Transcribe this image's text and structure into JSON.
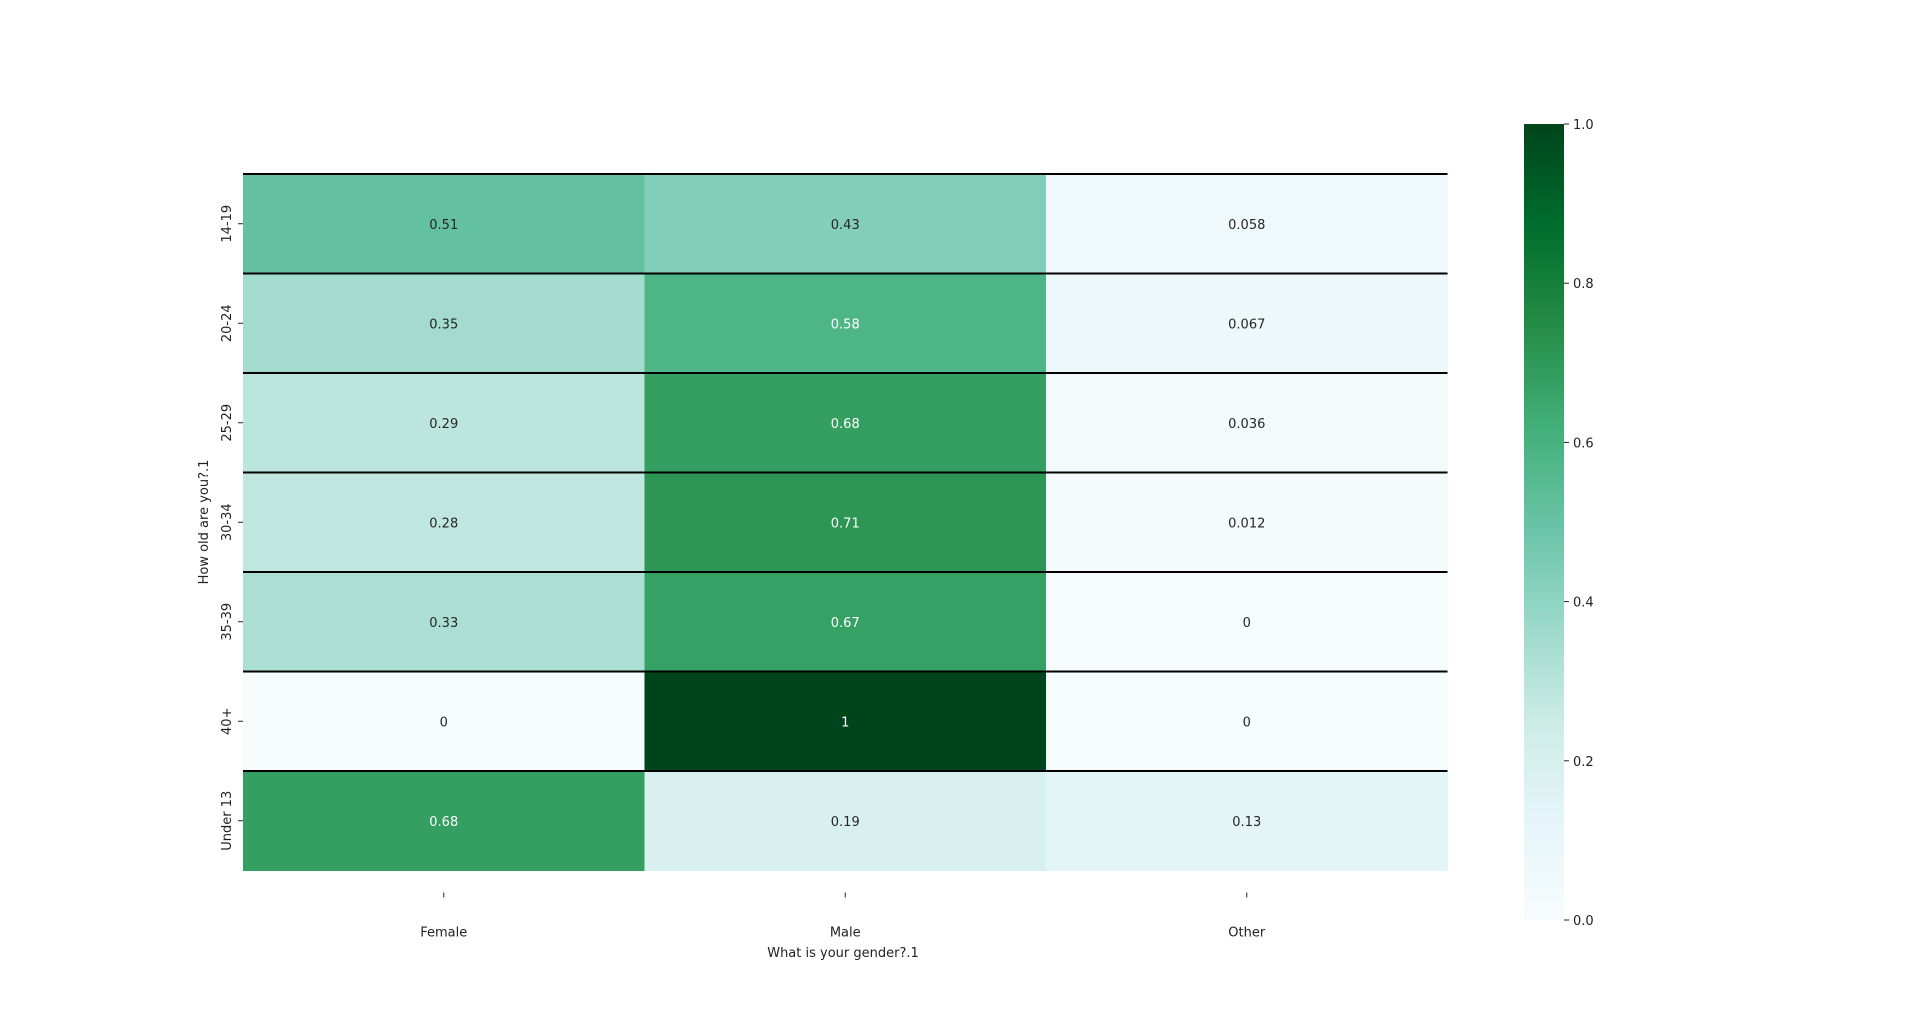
{
  "chart_data": {
    "type": "heatmap",
    "title": "",
    "xlabel": "What is your gender?.1",
    "ylabel": "How old are you?.1",
    "x_categories": [
      "Female",
      "Male",
      "Other"
    ],
    "y_categories": [
      "14-19",
      "20-24",
      "25-29",
      "30-34",
      "35-39",
      "40+",
      "Under 13"
    ],
    "values": [
      [
        0.51,
        0.43,
        0.058
      ],
      [
        0.35,
        0.58,
        0.067
      ],
      [
        0.29,
        0.68,
        0.036
      ],
      [
        0.28,
        0.71,
        0.012
      ],
      [
        0.33,
        0.67,
        0
      ],
      [
        0,
        1,
        0
      ],
      [
        0.68,
        0.19,
        0.13
      ]
    ],
    "cell_labels": [
      [
        "0.51",
        "0.43",
        "0.058"
      ],
      [
        "0.35",
        "0.58",
        "0.067"
      ],
      [
        "0.29",
        "0.68",
        "0.036"
      ],
      [
        "0.28",
        "0.71",
        "0.012"
      ],
      [
        "0.33",
        "0.67",
        "0"
      ],
      [
        "0",
        "1",
        "0"
      ],
      [
        "0.68",
        "0.19",
        "0.13"
      ]
    ],
    "colorbar": {
      "range": [
        0,
        1
      ],
      "ticks": [
        "0.0",
        "0.2",
        "0.4",
        "0.6",
        "0.8",
        "1.0"
      ],
      "colormap": "Greens-like (BuGn)",
      "color_stops": [
        "#f7fcfd",
        "#e5f5f9",
        "#ccece6",
        "#99d8c9",
        "#66c2a4",
        "#41ae76",
        "#238b45",
        "#006d2c",
        "#00441b"
      ]
    },
    "row_separators": true,
    "grid": false,
    "legend": "colorbar-right"
  }
}
